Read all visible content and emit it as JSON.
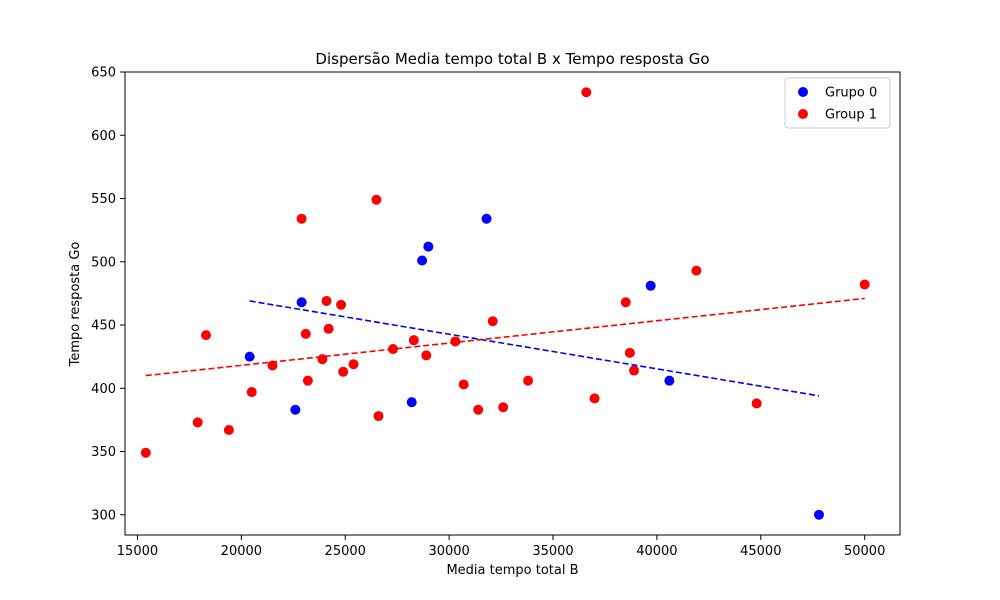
{
  "chart_data": {
    "type": "scatter",
    "title": "Dispersão Media tempo total B x Tempo resposta Go",
    "xlabel": "Media tempo total B",
    "ylabel": "Tempo resposta Go",
    "xlim": [
      14400,
      51700
    ],
    "ylim": [
      284,
      650
    ],
    "xticks": [
      15000,
      20000,
      25000,
      30000,
      35000,
      40000,
      45000,
      50000
    ],
    "yticks": [
      300,
      350,
      400,
      450,
      500,
      550,
      600,
      650
    ],
    "xtick_labels": [
      "15000",
      "20000",
      "25000",
      "30000",
      "35000",
      "40000",
      "45000",
      "50000"
    ],
    "ytick_labels": [
      "300",
      "350",
      "400",
      "450",
      "500",
      "550",
      "600",
      "650"
    ],
    "grid": false,
    "legend_position": "top-right",
    "series": [
      {
        "name": "Grupo 0",
        "color": "#0000ff",
        "points": [
          [
            20400,
            425
          ],
          [
            22600,
            383
          ],
          [
            22900,
            468
          ],
          [
            28200,
            389
          ],
          [
            28700,
            501
          ],
          [
            29000,
            512
          ],
          [
            31800,
            534
          ],
          [
            39700,
            481
          ],
          [
            40600,
            406
          ],
          [
            47800,
            300
          ]
        ],
        "trendline": [
          [
            20400,
            469
          ],
          [
            47800,
            394
          ]
        ]
      },
      {
        "name": "Group 1",
        "color": "#ff0000",
        "points": [
          [
            15400,
            349
          ],
          [
            17900,
            373
          ],
          [
            18300,
            442
          ],
          [
            19400,
            367
          ],
          [
            20500,
            397
          ],
          [
            21500,
            418
          ],
          [
            22900,
            534
          ],
          [
            23100,
            443
          ],
          [
            23200,
            406
          ],
          [
            23900,
            423
          ],
          [
            24100,
            469
          ],
          [
            24200,
            447
          ],
          [
            24800,
            466
          ],
          [
            24900,
            413
          ],
          [
            25400,
            419
          ],
          [
            26500,
            549
          ],
          [
            26600,
            378
          ],
          [
            27300,
            431
          ],
          [
            28300,
            438
          ],
          [
            28900,
            426
          ],
          [
            30300,
            437
          ],
          [
            30700,
            403
          ],
          [
            31400,
            383
          ],
          [
            32100,
            453
          ],
          [
            32600,
            385
          ],
          [
            33800,
            406
          ],
          [
            36600,
            634
          ],
          [
            37000,
            392
          ],
          [
            38500,
            468
          ],
          [
            38700,
            428
          ],
          [
            38900,
            414
          ],
          [
            41900,
            493
          ],
          [
            44800,
            388
          ],
          [
            50000,
            482
          ]
        ],
        "trendline": [
          [
            15400,
            410
          ],
          [
            50000,
            471
          ]
        ]
      }
    ]
  }
}
